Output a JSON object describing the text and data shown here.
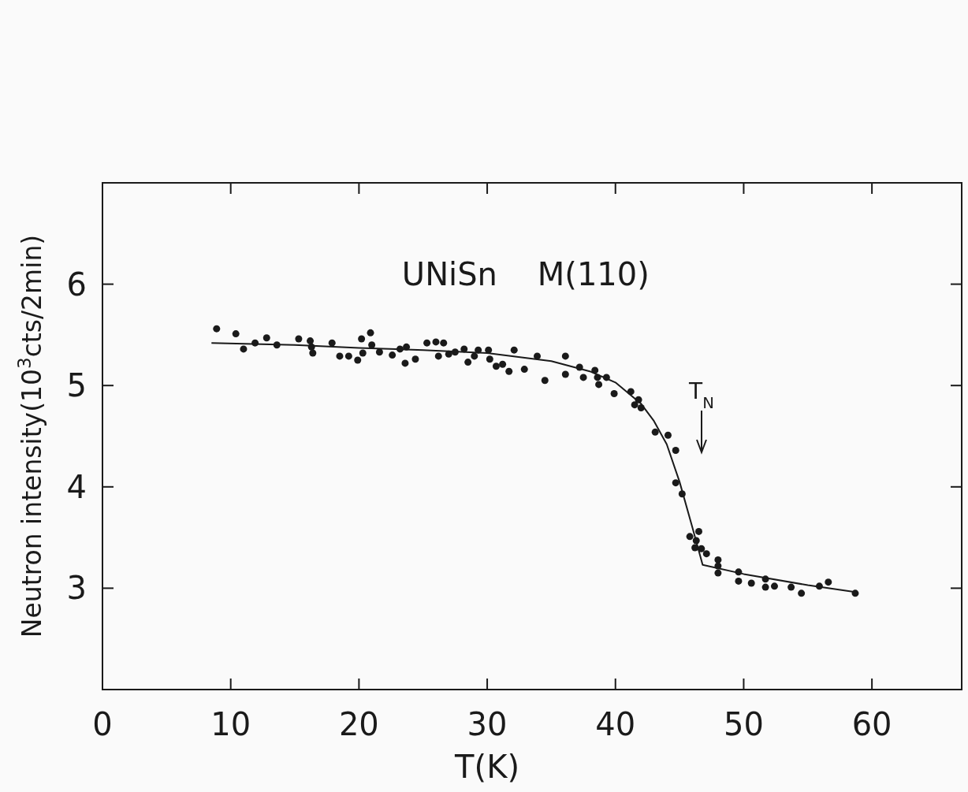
{
  "chart_data": {
    "type": "scatter",
    "title": "UNiSn    M(110)",
    "xlabel": "T(K)",
    "ylabel": "Neutron intensity(10$^{3}$cts/2min)",
    "xlim": [
      0,
      67
    ],
    "xticks": [
      0,
      10,
      20,
      30,
      40,
      50,
      60
    ],
    "ylim": [
      2,
      7
    ],
    "yticks": [
      3,
      4,
      5,
      6
    ],
    "grid": false,
    "annotations": [
      "T$_{N}$"
    ],
    "series": [
      {
        "marker": "circle",
        "color": "#1a1a1a",
        "x": [
          8.9,
          10.4,
          11.0,
          11.9,
          12.8,
          13.6,
          15.3,
          16.2,
          16.3,
          16.4,
          17.9,
          18.5,
          19.2,
          19.9,
          20.2,
          20.3,
          20.9,
          21.0,
          21.6,
          22.6,
          23.2,
          23.7,
          23.6,
          24.4,
          25.3,
          26.0,
          26.6,
          26.2,
          27.0,
          27.5,
          28.2,
          28.5,
          29.0,
          29.3,
          30.1,
          30.2,
          30.7,
          31.2,
          31.7,
          32.1,
          32.9,
          33.9,
          34.5,
          36.1,
          36.1,
          37.2,
          37.5,
          38.4,
          38.6,
          38.7,
          39.3,
          39.9,
          41.2,
          41.8,
          41.5,
          42.0,
          43.1,
          44.1,
          44.7,
          44.7,
          45.2,
          46.5,
          45.8,
          46.3,
          46.2,
          46.7,
          47.1,
          48.0,
          48.0,
          48.0,
          49.6,
          49.6,
          50.6,
          51.7,
          51.7,
          52.4,
          53.7,
          54.5,
          55.9,
          56.6,
          58.7
        ],
        "values": [
          5.56,
          5.51,
          5.36,
          5.42,
          5.47,
          5.4,
          5.46,
          5.44,
          5.38,
          5.32,
          5.42,
          5.29,
          5.29,
          5.25,
          5.46,
          5.32,
          5.52,
          5.4,
          5.33,
          5.3,
          5.36,
          5.38,
          5.22,
          5.26,
          5.42,
          5.43,
          5.42,
          5.29,
          5.31,
          5.33,
          5.36,
          5.23,
          5.29,
          5.35,
          5.35,
          5.26,
          5.19,
          5.21,
          5.14,
          5.35,
          5.16,
          5.29,
          5.05,
          5.29,
          5.11,
          5.18,
          5.08,
          5.15,
          5.08,
          5.01,
          5.08,
          4.92,
          4.94,
          4.86,
          4.81,
          4.78,
          4.54,
          4.51,
          4.36,
          4.04,
          3.93,
          3.56,
          3.51,
          3.47,
          3.4,
          3.39,
          3.34,
          3.28,
          3.22,
          3.15,
          3.16,
          3.07,
          3.05,
          3.09,
          3.01,
          3.02,
          3.01,
          2.95,
          3.02,
          3.06,
          2.95
        ]
      },
      {
        "type": "line",
        "color": "#1a1a1a",
        "x": [
          8.5,
          15,
          20,
          25,
          30,
          35,
          38,
          40,
          42,
          43,
          44,
          45,
          46,
          46.8,
          50,
          55,
          58.8
        ],
        "values": [
          5.42,
          5.4,
          5.37,
          5.35,
          5.32,
          5.24,
          5.14,
          5.03,
          4.82,
          4.65,
          4.42,
          4.05,
          3.6,
          3.23,
          3.14,
          3.03,
          2.96
        ]
      }
    ]
  }
}
